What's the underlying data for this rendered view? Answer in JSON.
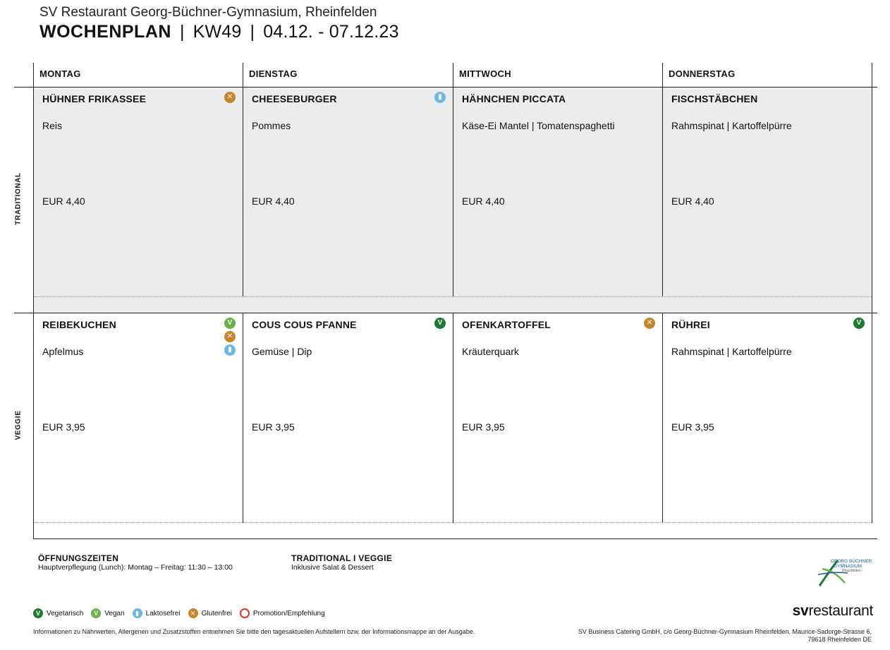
{
  "header": {
    "subtitle": "SV Restaurant Georg-Büchner-Gymnasium, Rheinfelden",
    "title": "WOCHENPLAN",
    "week": "KW49",
    "dates": "04.12. - 07.12.23"
  },
  "days": [
    "MONTAG",
    "DIENSTAG",
    "MITTWOCH",
    "DONNERSTAG"
  ],
  "rows": [
    {
      "label": "TRADITIONAL",
      "cells": [
        {
          "dish": "HÜHNER FRIKASSEE",
          "side": "Reis",
          "price": "EUR 4,40",
          "badges": [
            "glutenfrei"
          ]
        },
        {
          "dish": "CHEESEBURGER",
          "side": "Pommes",
          "price": "EUR 4,40",
          "badges": [
            "laktosefrei"
          ]
        },
        {
          "dish": "HÄHNCHEN PICCATA",
          "side": "Käse-Ei Mantel | Tomatenspaghetti",
          "price": "EUR 4,40",
          "badges": []
        },
        {
          "dish": "FISCHSTÄBCHEN",
          "side": "Rahmspinat | Kartoffelpürre",
          "price": "EUR 4,40",
          "badges": []
        }
      ]
    },
    {
      "label": "VEGGIE",
      "cells": [
        {
          "dish": "REIBEKUCHEN",
          "side": "Apfelmus",
          "price": "EUR 3,95",
          "badges": [
            "vegan",
            "glutenfrei",
            "laktosefrei"
          ]
        },
        {
          "dish": "COUS COUS PFANNE",
          "side": "Gemüse | Dip",
          "price": "EUR 3,95",
          "badges": [
            "vegetarisch"
          ]
        },
        {
          "dish": "OFENKARTOFFEL",
          "side": "Kräuterquark",
          "price": "EUR 3,95",
          "badges": [
            "glutenfrei"
          ]
        },
        {
          "dish": "RÜHREI",
          "side": "Rahmspinat | Kartoffelpürre",
          "price": "EUR 3,95",
          "badges": [
            "vegetarisch"
          ]
        }
      ]
    }
  ],
  "footer": {
    "hours_title": "ÖFFNUNGSZEITEN",
    "hours_text": "Hauptverpflegung (Lunch): Montag – Freitag: 11:30 – 13:00",
    "lines_title": "TRADITIONAL I VEGGIE",
    "lines_text": "Inklusive Salat & Dessert",
    "legend": {
      "vegetarisch": "Vegetarisch",
      "vegan": "Vegan",
      "laktosefrei": "Laktosefrei",
      "glutenfrei": "Glutenfrei",
      "promotion": "Promotion/Empfehlung"
    },
    "info": "Informationen zu Nährwerten, Allergenen und Zusatzstoffen entnehmen Sie bitte den tagesaktuellen Aufstellern bzw. der Informationsmappe an der Ausgabe.",
    "company_line1": "SV Business Catering GmbH, c/o Georg-Büchner-Gymnasium Rheinfelden, Maurice-Sadorge-Strasse 6,",
    "company_line2": "79618 Rheinfelden DE",
    "brand_bold": "sv",
    "brand_rest": "restaurant",
    "logo_line1": "GEORG BÜCHNER",
    "logo_line2": "GYMNASIUM",
    "logo_line3": "Rheinfelden"
  },
  "badge_colors": {
    "vegetarisch": "#1e7a2e",
    "vegan": "#6ab04c",
    "laktosefrei": "#6db7e3",
    "glutenfrei": "#c7862b",
    "promotion": "#d9342b"
  }
}
